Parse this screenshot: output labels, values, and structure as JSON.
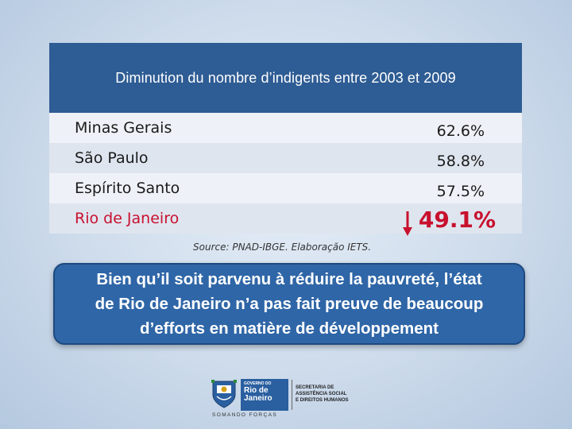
{
  "table": {
    "title": "Diminution du nombre d’indigents entre 2003 et 2009",
    "rows": [
      {
        "state": "Minas Gerais",
        "value": "62.6%"
      },
      {
        "state": "São Paulo",
        "value": "58.8%"
      },
      {
        "state": "Espírito Santo",
        "value": "57.5%"
      },
      {
        "state": "Rio de Janeiro",
        "value": "49.1%"
      }
    ]
  },
  "source": "Source: PNAD-IBGE. Elaboração IETS.",
  "callout": {
    "line1": "Bien qu’il soit parvenu à réduire la pauvreté, l’état",
    "line2": "de Rio de Janeiro n’a pas fait preuve de beaucoup",
    "line3": "d’efforts en matière de développement"
  },
  "logo": {
    "gov_small": "GOVERNO DO",
    "gov_line1": "Rio de",
    "gov_line2": "Janeiro",
    "motto": "SOMANDO FORÇAS",
    "secretariat_line1": "SECRETARIA DE",
    "secretariat_line2": "ASSISTÊNCIA SOCIAL",
    "secretariat_line3": "E DIREITOS HUMANOS"
  },
  "colors": {
    "header_blue": "#2e5c94",
    "callout_blue": "#2f66a7",
    "highlight_red": "#c8102e"
  }
}
